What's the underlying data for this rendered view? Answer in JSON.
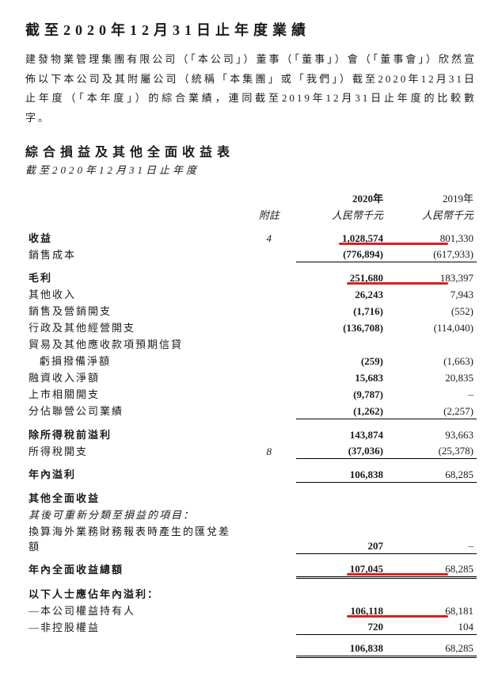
{
  "title": "截至2020年12月31日止年度業績",
  "intro": "建發物業管理集團有限公司（「本公司」）董事（「董事」）會（「董事會」）欣然宣佈以下本公司及其附屬公司（統稱「本集團」或「我們」）截至2020年12月31日止年度（「本年度」）的綜合業績，連同截至2019年12月31日止年度的比較數字。",
  "section_title": "綜合損益及其他全面收益表",
  "sub_period": "截至2020年12月31日止年度",
  "headers": {
    "notes": "附註",
    "y2020": "2020年",
    "y2019": "2019年",
    "unit2020": "人民幣千元",
    "unit2019": "人民幣千元"
  },
  "rows": {
    "revenue": {
      "label": "收益",
      "note": "4",
      "v20": "1,028,574",
      "v19": "801,330"
    },
    "cost_of_sales": {
      "label": "銷售成本",
      "v20": "(776,894)",
      "v19": "(617,933)"
    },
    "gross_profit": {
      "label": "毛利",
      "v20": "251,680",
      "v19": "183,397"
    },
    "other_income": {
      "label": "其他收入",
      "v20": "26,243",
      "v19": "7,943"
    },
    "selling_exp": {
      "label": "銷售及營銷開支",
      "v20": "(1,716)",
      "v19": "(552)"
    },
    "admin_exp": {
      "label": "行政及其他經營開支",
      "v20": "(136,708)",
      "v19": "(114,040)"
    },
    "ecl_head": {
      "label": "貿易及其他應收款項預期信貸"
    },
    "ecl_sub": {
      "label": "虧損撥備淨額",
      "v20": "(259)",
      "v19": "(1,663)"
    },
    "finance_income": {
      "label": "融資收入淨額",
      "v20": "15,683",
      "v19": "20,835"
    },
    "listing_exp": {
      "label": "上市相關開支",
      "v20": "(9,787)",
      "v19": "–"
    },
    "share_jv": {
      "label": "分佔聯營公司業績",
      "v20": "(1,262)",
      "v19": "(2,257)"
    },
    "pbt": {
      "label": "除所得稅前溢利",
      "v20": "143,874",
      "v19": "93,663"
    },
    "tax": {
      "label": "所得稅開支",
      "note": "8",
      "v20": "(37,036)",
      "v19": "(25,378)"
    },
    "profit_year": {
      "label": "年內溢利",
      "v20": "106,838",
      "v19": "68,285"
    },
    "oci_head": {
      "label": "其他全面收益"
    },
    "oci_reclass": {
      "label": "其後可重新分類至損益的項目："
    },
    "fx": {
      "label": "換算海外業務財務報表時產生的匯兌差額",
      "v20": "207",
      "v19": "–"
    },
    "total_ci": {
      "label": "年內全面收益總額",
      "v20": "107,045",
      "v19": "68,285"
    },
    "attrib_head": {
      "label": "以下人士應佔年內溢利："
    },
    "owners": {
      "label": "—本公司權益持有人",
      "v20": "106,118",
      "v19": "68,181"
    },
    "nci": {
      "label": "—非控股權益",
      "v20": "720",
      "v19": "104"
    },
    "attrib_total": {
      "v20": "106,838",
      "v19": "68,285"
    }
  },
  "colors": {
    "text": "#1a1a1a",
    "red": "#d92020",
    "background": "#ffffff",
    "rule": "#000000"
  }
}
